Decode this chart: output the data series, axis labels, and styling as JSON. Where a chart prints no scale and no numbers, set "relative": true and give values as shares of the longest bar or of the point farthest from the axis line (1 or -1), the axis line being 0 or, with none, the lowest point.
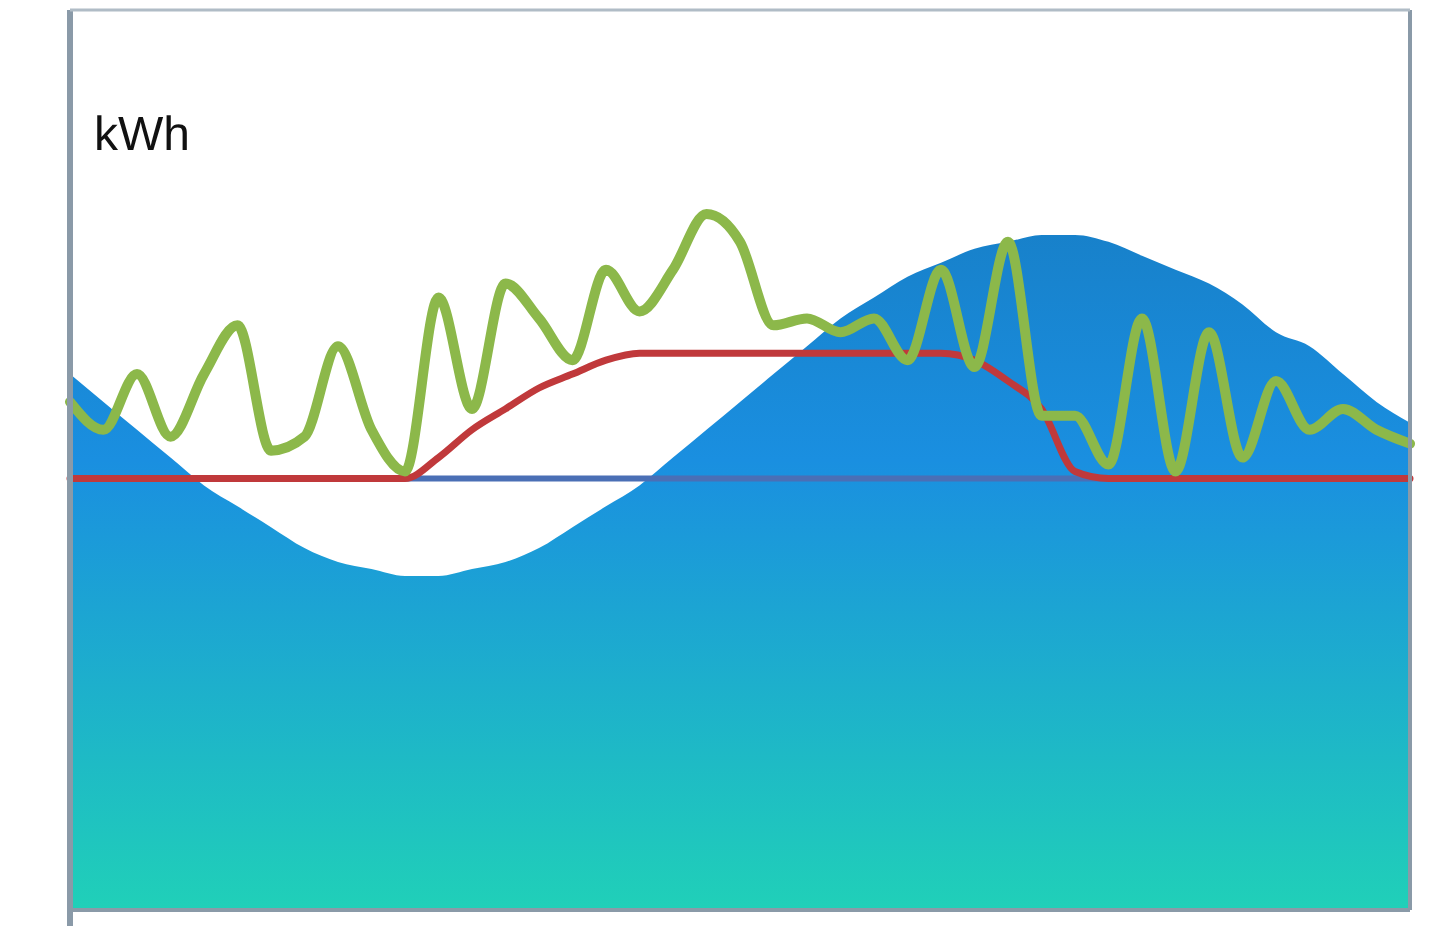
{
  "chart_data": {
    "type": "line",
    "relative": true,
    "ylabel": "kWh",
    "categories": [
      null,
      null,
      null,
      null,
      null,
      null,
      null,
      null,
      null,
      null,
      null,
      null,
      null,
      null,
      null,
      null,
      null,
      null,
      null,
      null,
      null,
      null,
      null,
      null,
      null,
      null,
      null,
      null,
      null,
      null,
      null,
      null,
      null,
      null,
      null,
      null,
      null,
      null,
      null,
      null,
      null
    ],
    "ref_lines": [
      {
        "axis": "y",
        "value": 0.62,
        "color": "#4a6fb5"
      }
    ],
    "series": [
      {
        "type": "area",
        "color": "#1a8fe0",
        "values": [
          0.77,
          0.73,
          0.69,
          0.65,
          0.61,
          0.58,
          0.55,
          0.52,
          0.5,
          0.49,
          0.48,
          0.48,
          0.49,
          0.5,
          0.52,
          0.55,
          0.58,
          0.61,
          0.65,
          0.69,
          0.73,
          0.77,
          0.81,
          0.85,
          0.88,
          0.91,
          0.93,
          0.95,
          0.96,
          0.97,
          0.97,
          0.96,
          0.94,
          0.92,
          0.9,
          0.87,
          0.83,
          0.81,
          0.77,
          0.73,
          0.7
        ]
      },
      {
        "color": "#c0393b",
        "values": [
          0.62,
          0.62,
          0.62,
          0.62,
          0.62,
          0.62,
          0.62,
          0.62,
          0.62,
          0.62,
          0.62,
          0.65,
          0.69,
          0.72,
          0.75,
          0.77,
          0.79,
          0.8,
          0.8,
          0.8,
          0.8,
          0.8,
          0.8,
          0.8,
          0.8,
          0.8,
          0.8,
          0.79,
          0.76,
          0.72,
          0.63,
          0.62,
          0.62,
          0.62,
          0.62,
          0.62,
          0.62,
          0.62,
          0.62,
          0.62,
          0.62
        ]
      },
      {
        "color": "#8cb84a",
        "values": [
          0.73,
          0.69,
          0.77,
          0.68,
          0.77,
          0.84,
          0.66,
          0.68,
          0.81,
          0.69,
          0.63,
          0.88,
          0.72,
          0.9,
          0.85,
          0.79,
          0.92,
          0.86,
          0.92,
          1.0,
          0.96,
          0.84,
          0.85,
          0.83,
          0.85,
          0.79,
          0.92,
          0.78,
          0.96,
          0.71,
          0.71,
          0.64,
          0.85,
          0.63,
          0.83,
          0.65,
          0.76,
          0.69,
          0.72,
          0.69,
          0.67
        ]
      }
    ]
  }
}
